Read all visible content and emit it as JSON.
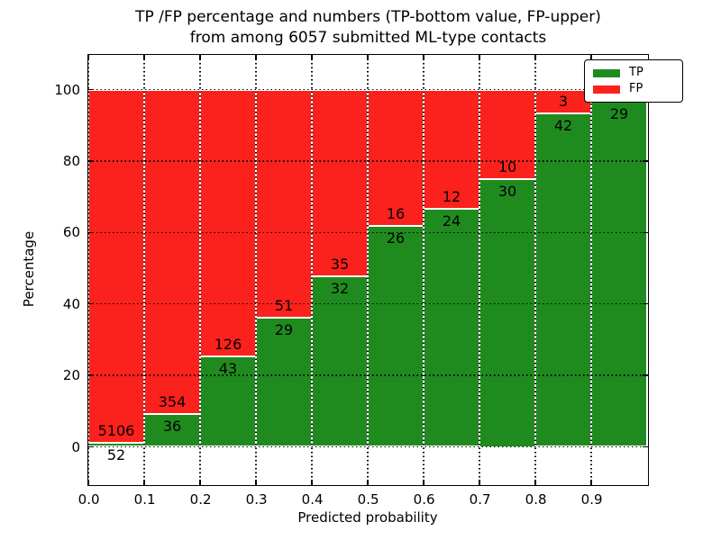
{
  "title": {
    "line1": "TP /FP percentage and numbers (TP-bottom value, FP-upper)",
    "line2": "from among 6057 submitted ML-type contacts"
  },
  "axes": {
    "ylabel": "Percentage",
    "xlabel": "Predicted probability",
    "ytick_labels": [
      "0",
      "20",
      "40",
      "60",
      "80",
      "100"
    ],
    "ytick_values": [
      0,
      20,
      40,
      60,
      80,
      100
    ],
    "xtick_labels": [
      "0.0",
      "0.1",
      "0.2",
      "0.3",
      "0.4",
      "0.5",
      "0.6",
      "0.7",
      "0.8",
      "0.9"
    ]
  },
  "legend": {
    "items": [
      {
        "label": "TP",
        "color": "#1f8b1f"
      },
      {
        "label": "FP",
        "color": "#fb211c"
      }
    ],
    "position": "upper right"
  },
  "colors": {
    "tp_green": "#1f8b1f",
    "fp_red": "#fb211c",
    "bar_edge": "#ffffff",
    "grid": "#000000"
  },
  "chart_data": {
    "type": "bar",
    "stacked": true,
    "title": "TP /FP percentage and numbers (TP-bottom value, FP-upper) from among 6057 submitted ML-type contacts",
    "xlabel": "Predicted probability",
    "ylabel": "Percentage",
    "total_contacts": 6057,
    "x_bin_edges": [
      0.0,
      0.1,
      0.2,
      0.3,
      0.4,
      0.5,
      0.6,
      0.7,
      0.8,
      0.9,
      1.0
    ],
    "grid": true,
    "legend_position": "upper right",
    "ylim": [
      -11,
      110
    ],
    "series": [
      {
        "name": "TP",
        "color": "#1f8b1f",
        "counts": [
          52,
          36,
          43,
          29,
          32,
          26,
          24,
          30,
          42,
          29
        ],
        "pct": [
          1.01,
          9.23,
          25.44,
          36.25,
          47.76,
          61.9,
          66.67,
          75.0,
          93.33,
          96.67
        ]
      },
      {
        "name": "FP",
        "color": "#fb211c",
        "counts": [
          5106,
          354,
          126,
          51,
          35,
          16,
          12,
          10,
          3,
          null
        ],
        "pct": [
          98.99,
          90.77,
          74.56,
          63.75,
          52.24,
          38.1,
          33.33,
          25.0,
          6.67,
          3.33
        ],
        "note": "last FP count label hidden behind legend"
      }
    ]
  }
}
